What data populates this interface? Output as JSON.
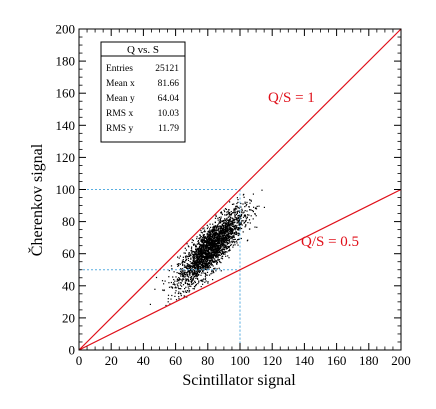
{
  "chart_data": {
    "type": "scatter",
    "xlabel": "Scintillator signal",
    "ylabel": "Čherenkov signal",
    "xlim": [
      0,
      200
    ],
    "ylim": [
      0,
      200
    ],
    "x_ticks": [
      "0",
      "20",
      "40",
      "60",
      "80",
      "100",
      "120",
      "140",
      "160",
      "180",
      "200"
    ],
    "y_ticks": [
      "0",
      "20",
      "40",
      "60",
      "80",
      "100",
      "120",
      "140",
      "160",
      "180",
      "200"
    ],
    "lines": [
      {
        "label": "Q/S = 1",
        "slope": 1.0,
        "color": "#e0101a"
      },
      {
        "label": "Q/S = 0.5",
        "slope": 0.5,
        "color": "#e0101a"
      }
    ],
    "reference_lines": [
      {
        "x": 100,
        "y": 100,
        "color": "#5aaee0",
        "style": "dashed"
      },
      {
        "x": 100,
        "y": 50,
        "color": "#5aaee0",
        "style": "dashed"
      }
    ],
    "distribution": {
      "entries": 25121,
      "mean_x": 81.66,
      "mean_y": 64.04,
      "rms_x": 10.03,
      "rms_y": 11.79
    },
    "stats_box": {
      "title": "Q vs. S",
      "rows": [
        {
          "label": "Entries",
          "value": "25121"
        },
        {
          "label": "Mean x",
          "value": "81.66"
        },
        {
          "label": "Mean y",
          "value": "64.04"
        },
        {
          "label": "RMS x",
          "value": "10.03"
        },
        {
          "label": "RMS y",
          "value": "11.79"
        }
      ]
    }
  },
  "colors": {
    "ratio_lines": "#e0101a",
    "reference_lines": "#5aaee0",
    "points": "#000000"
  }
}
